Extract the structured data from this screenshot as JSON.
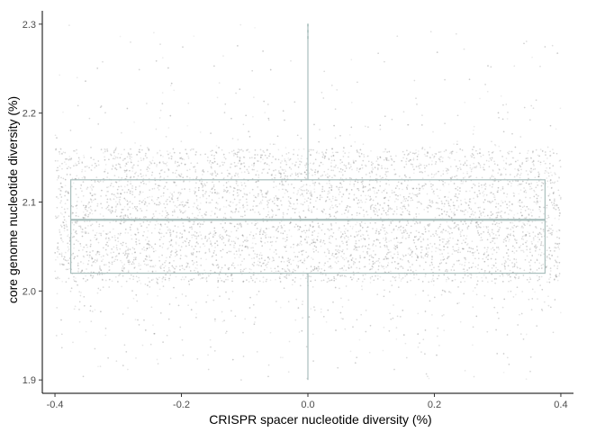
{
  "chart_data": {
    "type": "scatter",
    "overlay": "boxplot",
    "xlabel": "CRISPR spacer nucleotide diversity (%)",
    "ylabel": "core genome nucleotide diversity (%)",
    "xlim": [
      -0.42,
      0.42
    ],
    "ylim": [
      1.885,
      2.315
    ],
    "x_ticks": [
      -0.4,
      -0.2,
      0.0,
      0.2,
      0.4
    ],
    "x_tick_labels": [
      "-0.4",
      "-0.2",
      "0.0",
      "0.2",
      "0.4"
    ],
    "y_ticks": [
      1.9,
      2.0,
      2.1,
      2.2,
      2.3
    ],
    "y_tick_labels": [
      "1.9",
      "2.0",
      "2.1",
      "2.2",
      "2.3"
    ],
    "grid": false,
    "legend": "none",
    "points": {
      "x_range": [
        -0.4,
        0.4
      ],
      "y_range": [
        1.9,
        2.3
      ],
      "dense_band": [
        2.01,
        2.16
      ],
      "color": "#808080"
    },
    "boxplot": {
      "x_extent": [
        -0.375,
        0.375
      ],
      "center_x": 0.0,
      "q1": 2.02,
      "median": 2.08,
      "q3": 2.125,
      "whisker_low": 1.9,
      "whisker_high": 2.3,
      "color": "#a9bfbd"
    }
  }
}
